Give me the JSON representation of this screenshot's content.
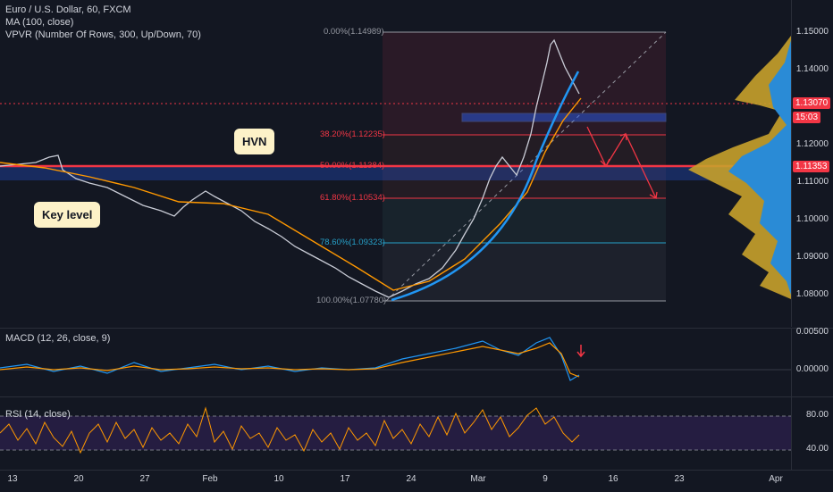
{
  "chart_title": "Euro / U.S. Dollar, 60, FXCM",
  "indicators": {
    "ma": "MA (100, close)",
    "vpvr": "VPVR (Number Of Rows, 300, Up/Down, 70)",
    "macd": "MACD (12, 26, close, 9)",
    "rsi": "RSI (14, close)"
  },
  "annotations": {
    "hvn": "HVN",
    "key_level": "Key level"
  },
  "fib_levels": [
    {
      "label": "0.00%(1.14989)",
      "color": "#9598a1"
    },
    {
      "label": "38.20%(1.12235)",
      "color": "#f23645"
    },
    {
      "label": "50.00%(1.11384)",
      "color": "#f23645"
    },
    {
      "label": "61.80%(1.10534)",
      "color": "#f23645"
    },
    {
      "label": "78.60%(1.09323)",
      "color": "#26a0c8"
    },
    {
      "label": "100.00%(1.07780)",
      "color": "#9598a1"
    }
  ],
  "price_axis": [
    "1.15000",
    "1.14000",
    "1.13070",
    "15:03",
    "1.12000",
    "1.11353",
    "1.11000",
    "1.10000",
    "1.09000",
    "1.08000"
  ],
  "macd_axis": [
    "0.00500",
    "0.00000"
  ],
  "rsi_axis": [
    "80.00",
    "40.00"
  ],
  "time_axis": [
    "13",
    "20",
    "27",
    "Feb",
    "10",
    "17",
    "24",
    "Mar",
    "9",
    "16",
    "23",
    "Apr"
  ],
  "colors": {
    "background": "#131722",
    "accent_red": "#f23645",
    "ma_orange": "#ff9800",
    "arc_blue": "#2196f3",
    "callout": "#fdf2c8"
  }
}
